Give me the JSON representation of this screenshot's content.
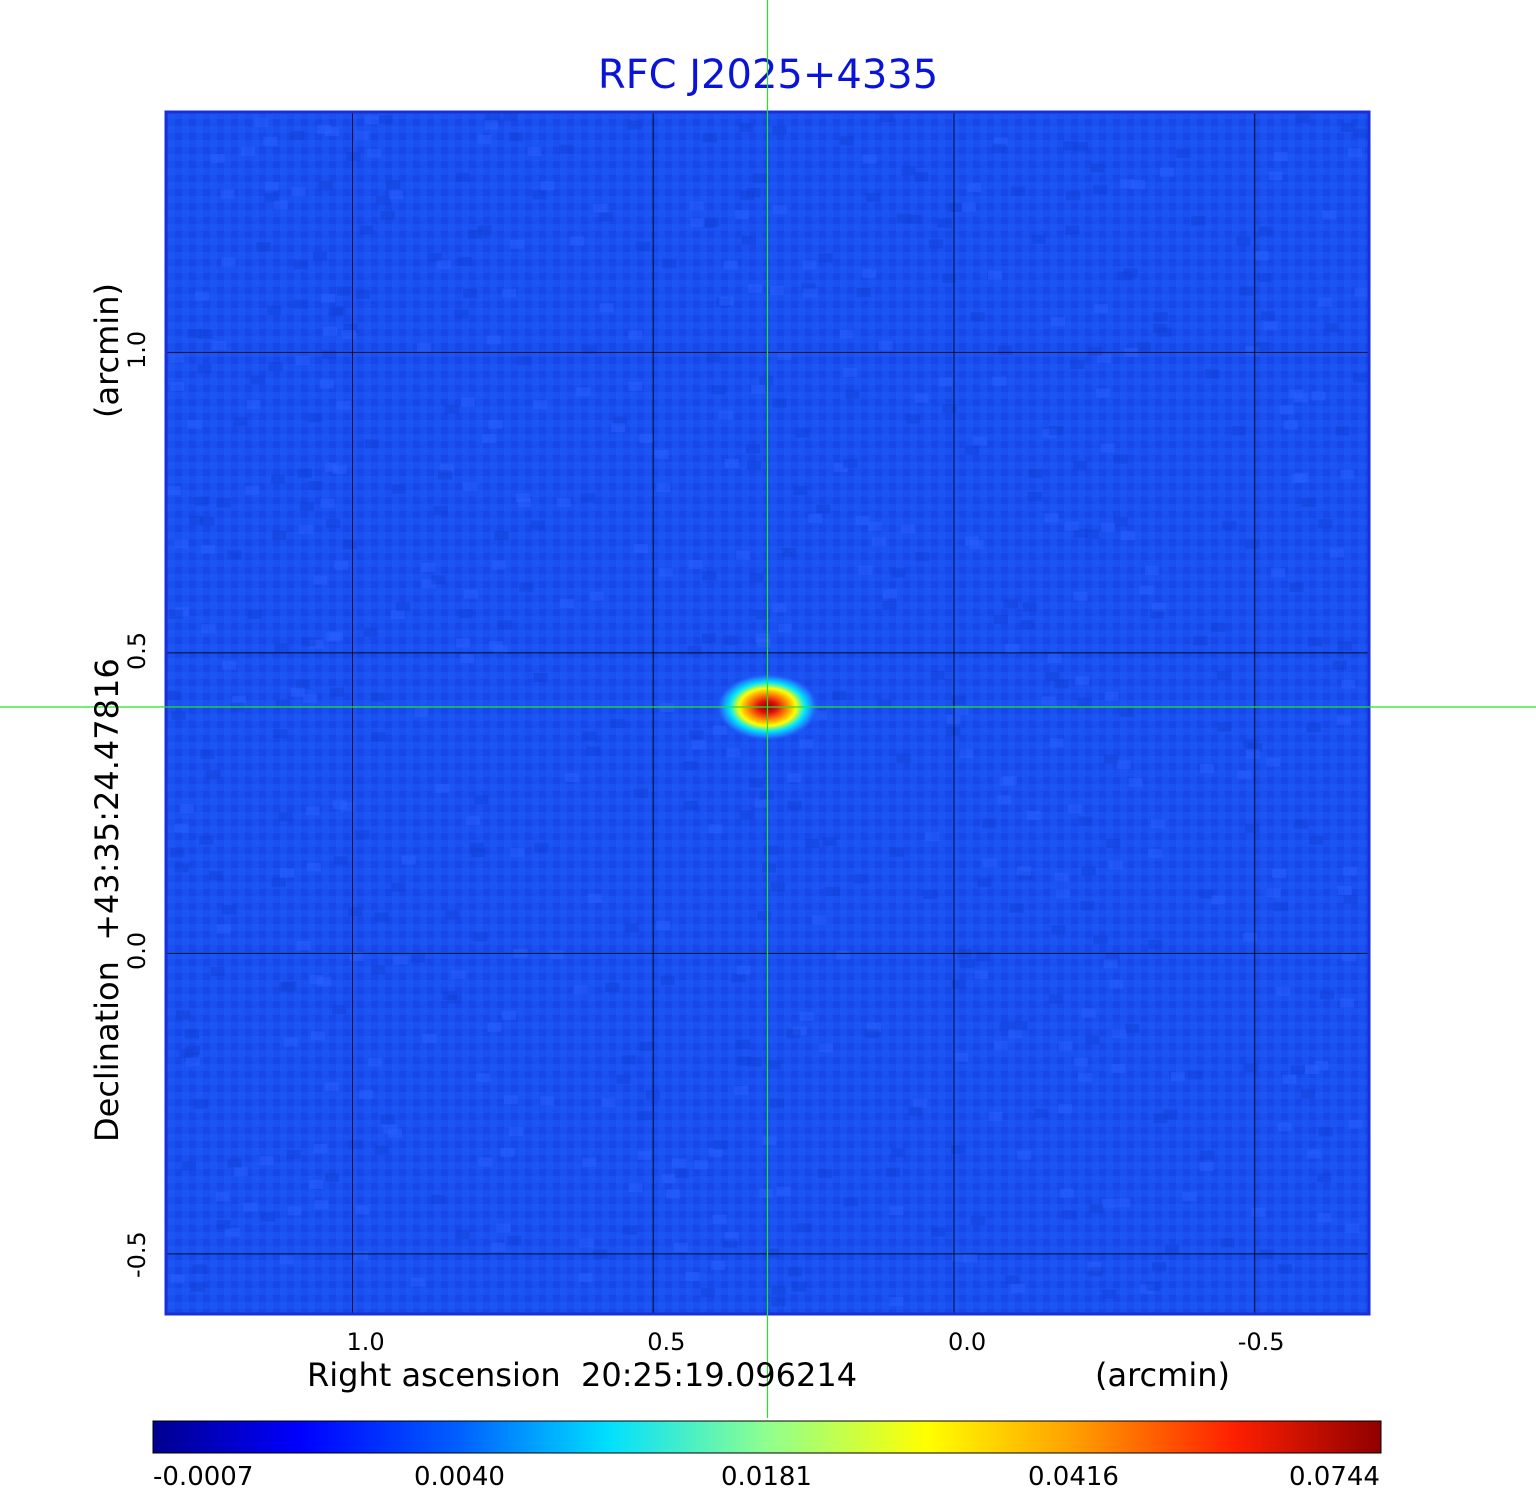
{
  "chart_data": {
    "type": "heatmap",
    "title": "RFC J2025+4335",
    "xlabel": "Right ascension  20:25:19.096214",
    "xunit": "(arcmin)",
    "ylabel": "Declination  +43:35:24.47816",
    "yunit": "(arcmin)",
    "x_ticks": [
      "1.0",
      "0.5",
      "0.0",
      "-0.5"
    ],
    "x_tick_values": [
      1.0,
      0.5,
      0.0,
      -0.5
    ],
    "xlim": [
      1.31,
      -0.69
    ],
    "y_ticks": [
      "1.0",
      "0.5",
      "0.0",
      "-0.5"
    ],
    "y_tick_values": [
      1.0,
      0.5,
      0.0,
      -0.5
    ],
    "ylim": [
      -0.6,
      1.4
    ],
    "grid": true,
    "crosshair": {
      "x": 0.31,
      "y": 0.41
    },
    "source_peak": {
      "x": 0.31,
      "y": 0.41,
      "value": 0.0744
    },
    "colorbar": {
      "tick_labels": [
        "-0.0007",
        "0.0040",
        "0.0181",
        "0.0416",
        "0.0744"
      ],
      "colormap": "jet"
    }
  },
  "colors": {
    "title": "#0a14d8",
    "background_map": "#1a4ff0",
    "crosshair": "#22e622",
    "grid": "#000000"
  }
}
